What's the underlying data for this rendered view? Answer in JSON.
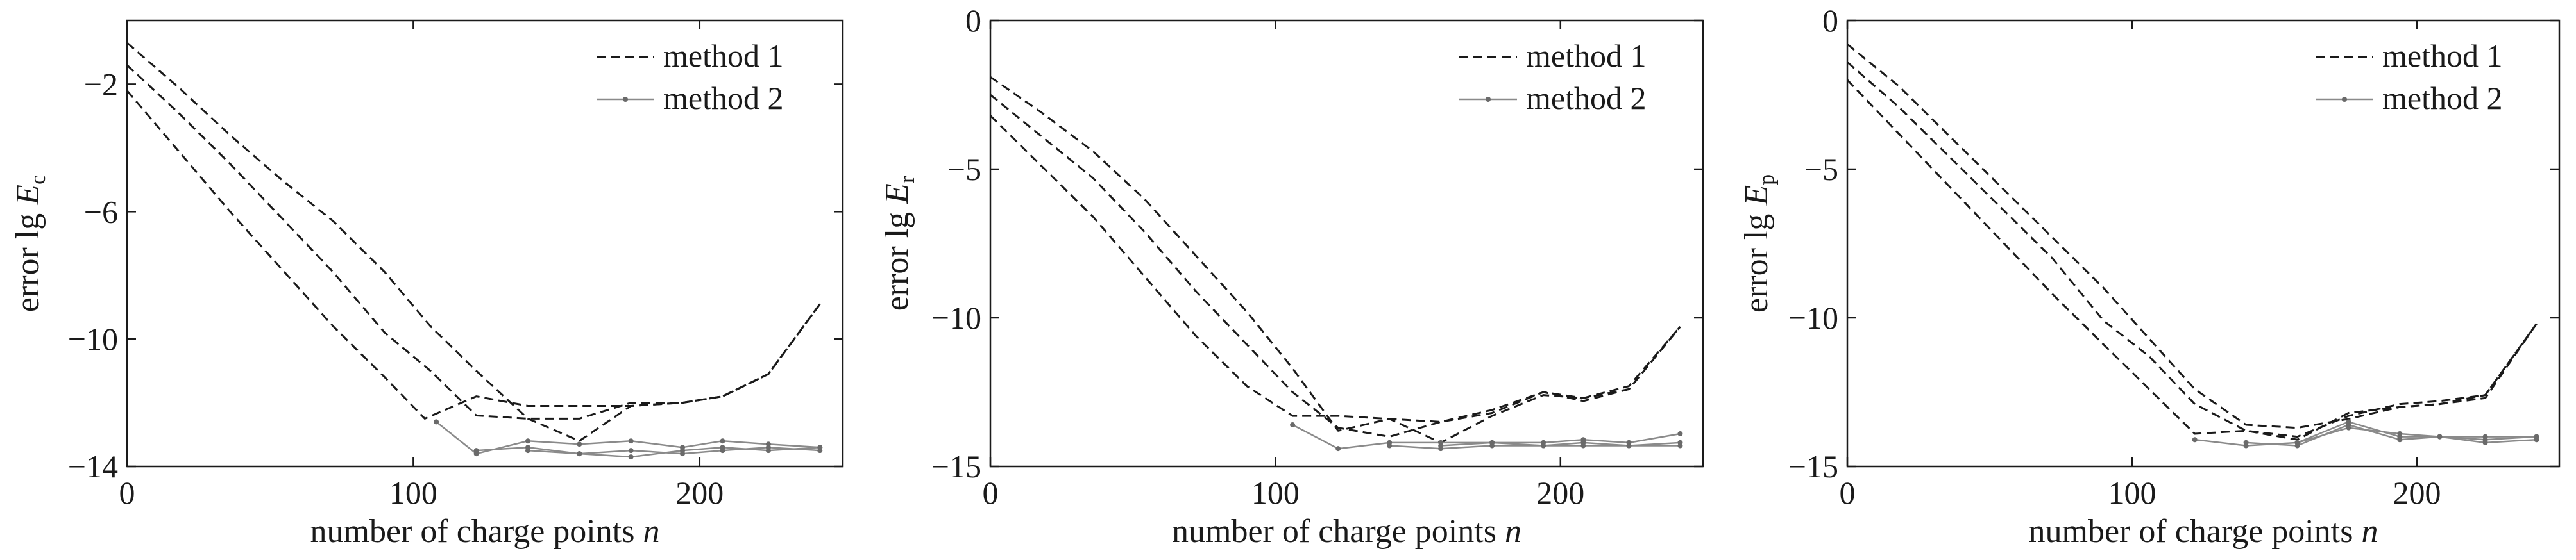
{
  "chart_data": [
    {
      "type": "line",
      "title": "",
      "xlabel": "number of charge points",
      "xlabel_var": "n",
      "ylabel": "error lg",
      "ylabel_var": "E",
      "ylabel_sub": "c",
      "xlim": [
        0,
        250
      ],
      "ylim": [
        -14,
        0
      ],
      "xticks": [
        0,
        100,
        200
      ],
      "yticks": [
        -2,
        -6,
        -10,
        -14
      ],
      "legend": "top-right",
      "grid": false,
      "legend_entries": [
        {
          "label": "method 1",
          "style": "dashed"
        },
        {
          "label": "method 2",
          "style": "solid-marker"
        }
      ],
      "series": [
        {
          "group": "method 1",
          "x": [
            0,
            18,
            36,
            54,
            72,
            90,
            106,
            122,
            140,
            158,
            176,
            194,
            208,
            224,
            242
          ],
          "y": [
            -0.7,
            -2.1,
            -3.6,
            -5.0,
            -6.3,
            -7.9,
            -9.6,
            -11.0,
            -12.5,
            -13.2,
            -12.1,
            -12.0,
            -11.8,
            -11.1,
            -8.9
          ]
        },
        {
          "group": "method 1",
          "x": [
            0,
            18,
            36,
            54,
            72,
            90,
            106,
            122,
            140,
            158,
            176,
            194,
            208,
            224,
            242
          ],
          "y": [
            -1.4,
            -2.9,
            -4.5,
            -6.2,
            -7.9,
            -9.8,
            -11.0,
            -12.4,
            -12.5,
            -12.5,
            -12.0,
            -12.0,
            -11.8,
            -11.1,
            -8.9
          ]
        },
        {
          "group": "method 1",
          "x": [
            0,
            18,
            36,
            54,
            72,
            90,
            104,
            122,
            140,
            158,
            176,
            194,
            208,
            224,
            242
          ],
          "y": [
            -2.2,
            -4.1,
            -6.0,
            -7.8,
            -9.6,
            -11.2,
            -12.5,
            -11.8,
            -12.1,
            -12.1,
            -12.1,
            -12.0,
            -11.8,
            -11.1,
            -8.9
          ]
        },
        {
          "group": "method 2",
          "x": [
            108,
            122,
            140,
            158,
            176,
            194,
            208,
            224,
            242
          ],
          "y": [
            -12.6,
            -13.6,
            -13.2,
            -13.3,
            -13.2,
            -13.4,
            -13.2,
            -13.3,
            -13.4
          ]
        },
        {
          "group": "method 2",
          "x": [
            122,
            140,
            158,
            176,
            194,
            208,
            224,
            242
          ],
          "y": [
            -13.5,
            -13.4,
            -13.6,
            -13.7,
            -13.5,
            -13.4,
            -13.5,
            -13.4
          ]
        },
        {
          "group": "method 2",
          "x": [
            140,
            158,
            176,
            194,
            208,
            224,
            242
          ],
          "y": [
            -13.5,
            -13.6,
            -13.5,
            -13.6,
            -13.5,
            -13.4,
            -13.5
          ]
        }
      ]
    },
    {
      "type": "line",
      "title": "",
      "xlabel": "number of charge points",
      "xlabel_var": "n",
      "ylabel": "error lg",
      "ylabel_var": "E",
      "ylabel_sub": "r",
      "xlim": [
        0,
        250
      ],
      "ylim": [
        -15,
        0
      ],
      "xticks": [
        0,
        100,
        200
      ],
      "yticks": [
        0,
        -5,
        -10,
        -15
      ],
      "legend": "top-right",
      "grid": false,
      "legend_entries": [
        {
          "label": "method 1",
          "style": "dashed"
        },
        {
          "label": "method 2",
          "style": "solid-marker"
        }
      ],
      "series": [
        {
          "group": "method 1",
          "x": [
            0,
            18,
            36,
            54,
            72,
            90,
            106,
            122,
            140,
            158,
            176,
            194,
            208,
            224,
            242
          ],
          "y": [
            -1.9,
            -3.1,
            -4.4,
            -6.0,
            -7.9,
            -9.8,
            -11.7,
            -13.8,
            -13.4,
            -13.5,
            -13.2,
            -12.5,
            -12.7,
            -12.4,
            -10.3
          ]
        },
        {
          "group": "method 1",
          "x": [
            0,
            18,
            36,
            54,
            72,
            90,
            106,
            122,
            140,
            158,
            176,
            194,
            208,
            224,
            242
          ],
          "y": [
            -2.5,
            -3.9,
            -5.3,
            -7.1,
            -9.1,
            -10.9,
            -12.5,
            -13.7,
            -14.0,
            -13.5,
            -13.1,
            -12.5,
            -12.8,
            -12.4,
            -10.3
          ]
        },
        {
          "group": "method 1",
          "x": [
            0,
            18,
            36,
            54,
            72,
            90,
            106,
            122,
            140,
            158,
            176,
            194,
            208,
            224,
            242
          ],
          "y": [
            -3.2,
            -4.9,
            -6.6,
            -8.6,
            -10.6,
            -12.3,
            -13.3,
            -13.3,
            -13.4,
            -14.2,
            -13.3,
            -12.6,
            -12.7,
            -12.3,
            -10.3
          ]
        },
        {
          "group": "method 2",
          "x": [
            106,
            122,
            140,
            158,
            176,
            194,
            208,
            224,
            242
          ],
          "y": [
            -13.6,
            -14.4,
            -14.2,
            -14.2,
            -14.2,
            -14.2,
            -14.1,
            -14.2,
            -13.9
          ]
        },
        {
          "group": "method 2",
          "x": [
            140,
            158,
            176,
            194,
            208,
            224,
            242
          ],
          "y": [
            -14.3,
            -14.4,
            -14.3,
            -14.3,
            -14.2,
            -14.3,
            -14.2
          ]
        },
        {
          "group": "method 2",
          "x": [
            158,
            176,
            194,
            208,
            224,
            242
          ],
          "y": [
            -14.3,
            -14.2,
            -14.3,
            -14.3,
            -14.3,
            -14.3
          ]
        }
      ]
    },
    {
      "type": "line",
      "title": "",
      "xlabel": "number of charge points",
      "xlabel_var": "n",
      "ylabel": "error lg",
      "ylabel_var": "E",
      "ylabel_sub": "p",
      "xlim": [
        0,
        250
      ],
      "ylim": [
        -15,
        0
      ],
      "xticks": [
        0,
        100,
        200
      ],
      "yticks": [
        0,
        -5,
        -10,
        -15
      ],
      "legend": "top-right",
      "grid": false,
      "legend_entries": [
        {
          "label": "method 1",
          "style": "dashed"
        },
        {
          "label": "method 2",
          "style": "solid-marker"
        }
      ],
      "series": [
        {
          "group": "method 1",
          "x": [
            0,
            18,
            36,
            54,
            72,
            90,
            106,
            122,
            140,
            158,
            176,
            194,
            208,
            224,
            242
          ],
          "y": [
            -0.8,
            -2.2,
            -3.9,
            -5.6,
            -7.3,
            -9.0,
            -10.7,
            -12.4,
            -13.6,
            -13.7,
            -13.4,
            -13.0,
            -12.9,
            -12.6,
            -10.2
          ]
        },
        {
          "group": "method 1",
          "x": [
            0,
            18,
            36,
            54,
            72,
            90,
            106,
            122,
            140,
            158,
            176,
            194,
            208,
            224,
            242
          ],
          "y": [
            -1.4,
            -2.9,
            -4.6,
            -6.3,
            -8.0,
            -10.1,
            -11.3,
            -12.9,
            -13.8,
            -14.0,
            -13.3,
            -12.9,
            -12.8,
            -12.6,
            -10.2
          ]
        },
        {
          "group": "method 1",
          "x": [
            0,
            18,
            36,
            54,
            72,
            90,
            106,
            122,
            140,
            158,
            176,
            194,
            208,
            224,
            242
          ],
          "y": [
            -2.0,
            -3.8,
            -5.6,
            -7.4,
            -9.2,
            -10.9,
            -12.4,
            -13.9,
            -13.8,
            -14.1,
            -13.2,
            -13.0,
            -12.9,
            -12.7,
            -10.2
          ]
        },
        {
          "group": "method 2",
          "x": [
            122,
            140,
            158,
            176,
            194,
            208,
            224,
            242
          ],
          "y": [
            -14.1,
            -14.3,
            -14.2,
            -13.5,
            -14.0,
            -14.0,
            -14.0,
            -14.0
          ]
        },
        {
          "group": "method 2",
          "x": [
            140,
            158,
            176,
            194,
            208,
            224,
            242
          ],
          "y": [
            -14.2,
            -14.3,
            -13.6,
            -14.1,
            -14.0,
            -14.2,
            -14.1
          ]
        },
        {
          "group": "method 2",
          "x": [
            158,
            176,
            194,
            208,
            224,
            242
          ],
          "y": [
            -14.2,
            -13.7,
            -13.9,
            -14.0,
            -14.1,
            -14.0
          ]
        }
      ]
    }
  ]
}
